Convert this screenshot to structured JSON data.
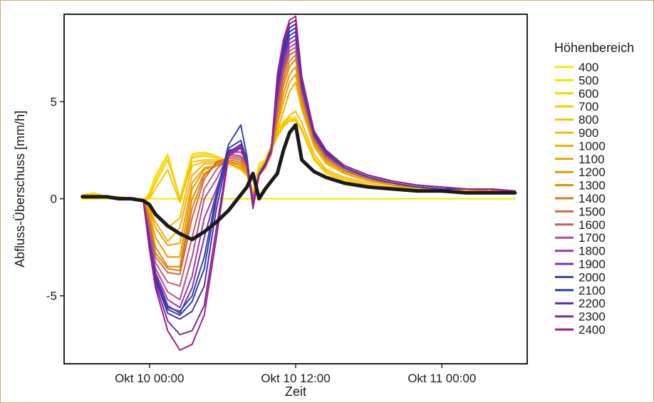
{
  "chart_data": {
    "type": "line",
    "xlabel": "Zeit",
    "ylabel": "Abfluss-Überschuss [mm/h]",
    "x_ticks": [
      "Okt 10 00:00",
      "Okt 10 12:00",
      "Okt 11 00:00"
    ],
    "x_tick_hours": [
      0,
      12,
      24
    ],
    "xlim_hours": [
      -7,
      31
    ],
    "y_ticks": [
      5,
      0,
      -5
    ],
    "y_tick_labels": [
      "5",
      "0",
      "-5"
    ],
    "ylim": [
      -8.5,
      9.5
    ],
    "legend_title": "Höhenbereich",
    "legend_position": "right",
    "x_hours": [
      -5.5,
      -4.5,
      -3.5,
      -2.5,
      -1.5,
      -0.5,
      0,
      0.5,
      1.5,
      2.5,
      3.5,
      4.5,
      5.5,
      6.5,
      7.5,
      8.0,
      8.5,
      9.0,
      9.5,
      10.0,
      10.5,
      11.0,
      11.5,
      12.0,
      12.5,
      13.5,
      14.5,
      16,
      18,
      20,
      22,
      24,
      26,
      28,
      30
    ],
    "series": [
      {
        "name": "400",
        "color": "#f3e600",
        "width": 2,
        "values": [
          0.0,
          0.0,
          0.0,
          0.0,
          0.0,
          0.0,
          0.0,
          0.0,
          0.0,
          0.0,
          0.0,
          0.0,
          0.0,
          0.0,
          0.0,
          0.0,
          0.0,
          0.0,
          0.0,
          0.0,
          0.0,
          0.0,
          0.0,
          0.0,
          0.0,
          0.0,
          0.0,
          0.0,
          0.0,
          0.0,
          0.0,
          0.0,
          0.0,
          0.0,
          0.0
        ]
      },
      {
        "name": "500",
        "color": "#f5e000",
        "width": 2,
        "values": [
          0.2,
          0.3,
          0.1,
          0.1,
          0.0,
          -0.1,
          0.3,
          1.2,
          2.3,
          0.0,
          2.3,
          2.4,
          2.2,
          1.9,
          1.5,
          1.3,
          0.4,
          1.8,
          2.0,
          2.8,
          3.5,
          4.0,
          4.2,
          4.2,
          3.5,
          2.0,
          1.3,
          0.9,
          0.6,
          0.5,
          0.4,
          0.4,
          0.3,
          0.3,
          0.3
        ]
      },
      {
        "name": "600",
        "color": "#f7d600",
        "width": 2,
        "values": [
          0.2,
          0.2,
          0.1,
          0.1,
          0.0,
          -0.1,
          0.2,
          1.0,
          2.2,
          0.0,
          2.2,
          2.3,
          2.2,
          1.9,
          1.5,
          1.2,
          0.3,
          1.6,
          2.0,
          2.7,
          3.4,
          3.9,
          4.1,
          4.1,
          3.5,
          2.0,
          1.3,
          0.9,
          0.6,
          0.5,
          0.4,
          0.4,
          0.3,
          0.3,
          0.3
        ]
      },
      {
        "name": "700",
        "color": "#f8cc00",
        "width": 2,
        "values": [
          0.2,
          0.2,
          0.1,
          0.1,
          0.0,
          -0.1,
          0.1,
          0.8,
          2.0,
          0.0,
          2.1,
          2.2,
          2.1,
          1.8,
          1.5,
          1.2,
          0.3,
          1.5,
          1.9,
          2.6,
          3.3,
          3.8,
          4.0,
          4.0,
          3.5,
          2.0,
          1.4,
          1.0,
          0.7,
          0.5,
          0.4,
          0.4,
          0.3,
          0.3,
          0.3
        ]
      },
      {
        "name": "800",
        "color": "#f8c300",
        "width": 2,
        "values": [
          0.2,
          0.2,
          0.1,
          0.1,
          0.0,
          -0.1,
          0.0,
          0.5,
          1.5,
          -0.2,
          1.9,
          2.0,
          2.0,
          1.8,
          1.5,
          1.2,
          0.2,
          1.4,
          1.9,
          2.6,
          3.2,
          3.7,
          4.0,
          4.1,
          3.6,
          2.1,
          1.4,
          1.0,
          0.7,
          0.5,
          0.4,
          0.4,
          0.4,
          0.3,
          0.3
        ]
      },
      {
        "name": "900",
        "color": "#f6b900",
        "width": 2,
        "values": [
          0.2,
          0.2,
          0.1,
          0.1,
          0.0,
          -0.1,
          -0.3,
          -0.8,
          -1.5,
          -1.0,
          1.7,
          1.9,
          1.9,
          1.8,
          1.6,
          1.3,
          0.1,
          1.3,
          1.8,
          2.5,
          3.2,
          3.8,
          4.3,
          4.5,
          3.9,
          2.3,
          1.5,
          1.1,
          0.8,
          0.6,
          0.5,
          0.4,
          0.4,
          0.4,
          0.4
        ]
      },
      {
        "name": "1000",
        "color": "#f3ae00",
        "width": 2,
        "values": [
          0.1,
          0.1,
          0.1,
          0.0,
          0.0,
          -0.1,
          -0.5,
          -1.2,
          -2.2,
          -1.5,
          1.2,
          1.8,
          1.8,
          1.8,
          1.6,
          1.3,
          0.0,
          1.2,
          1.7,
          2.4,
          3.5,
          4.5,
          5.5,
          6.0,
          4.6,
          2.7,
          1.8,
          1.3,
          0.9,
          0.7,
          0.5,
          0.5,
          0.4,
          0.4,
          0.4
        ]
      },
      {
        "name": "1100",
        "color": "#efa200",
        "width": 2,
        "values": [
          0.1,
          0.1,
          0.1,
          0.0,
          0.0,
          -0.1,
          -0.6,
          -1.5,
          -2.4,
          -2.3,
          0.8,
          1.6,
          1.7,
          1.8,
          1.6,
          1.3,
          0.0,
          1.2,
          1.6,
          2.3,
          3.8,
          5.0,
          6.0,
          6.4,
          4.8,
          2.8,
          1.9,
          1.3,
          0.9,
          0.7,
          0.5,
          0.5,
          0.4,
          0.4,
          0.4
        ]
      },
      {
        "name": "1200",
        "color": "#ea9600",
        "width": 2,
        "values": [
          0.1,
          0.1,
          0.1,
          0.0,
          0.0,
          -0.1,
          -0.8,
          -2.0,
          -3.0,
          -3.0,
          0.5,
          1.5,
          1.7,
          1.9,
          1.7,
          1.4,
          0.0,
          1.2,
          1.6,
          2.3,
          4.0,
          5.4,
          6.4,
          6.8,
          5.0,
          2.9,
          2.0,
          1.4,
          1.0,
          0.7,
          0.6,
          0.5,
          0.5,
          0.4,
          0.4
        ]
      },
      {
        "name": "1300",
        "color": "#e48b00",
        "width": 2,
        "values": [
          0.1,
          0.1,
          0.1,
          0.0,
          0.0,
          -0.1,
          -1.0,
          -2.5,
          -3.5,
          -3.5,
          0.0,
          1.3,
          1.7,
          1.9,
          1.8,
          1.5,
          0.0,
          1.2,
          1.6,
          2.3,
          4.2,
          5.8,
          6.8,
          7.2,
          5.2,
          3.0,
          2.0,
          1.4,
          1.0,
          0.7,
          0.6,
          0.5,
          0.5,
          0.4,
          0.4
        ]
      },
      {
        "name": "1400",
        "color": "#db7d18",
        "width": 2,
        "values": [
          0.1,
          0.1,
          0.1,
          0.0,
          0.0,
          -0.1,
          -1.2,
          -2.8,
          -3.6,
          -3.7,
          -0.5,
          1.2,
          1.8,
          2.0,
          1.9,
          1.6,
          0.0,
          1.2,
          1.6,
          2.3,
          4.4,
          6.1,
          7.1,
          7.4,
          5.3,
          3.0,
          2.1,
          1.5,
          1.0,
          0.8,
          0.6,
          0.5,
          0.5,
          0.4,
          0.4
        ]
      },
      {
        "name": "1500",
        "color": "#cf6a3a",
        "width": 2,
        "values": [
          0.1,
          0.1,
          0.1,
          0.0,
          0.0,
          -0.1,
          -1.3,
          -3.0,
          -3.8,
          -3.9,
          -1.0,
          1.0,
          1.9,
          2.1,
          2.0,
          1.7,
          0.0,
          1.2,
          1.6,
          2.3,
          4.6,
          6.4,
          7.4,
          7.6,
          5.4,
          3.1,
          2.1,
          1.5,
          1.0,
          0.8,
          0.6,
          0.5,
          0.5,
          0.4,
          0.4
        ]
      },
      {
        "name": "1600",
        "color": "#c15c70",
        "width": 2,
        "values": [
          0.1,
          0.1,
          0.1,
          0.0,
          0.0,
          -0.1,
          -1.5,
          -3.3,
          -4.3,
          -4.5,
          -2.0,
          0.5,
          1.5,
          2.2,
          2.1,
          1.8,
          0.0,
          1.3,
          1.7,
          2.4,
          4.8,
          6.6,
          7.6,
          7.8,
          5.5,
          3.1,
          2.2,
          1.5,
          1.1,
          0.8,
          0.6,
          0.5,
          0.5,
          0.5,
          0.4
        ]
      },
      {
        "name": "1700",
        "color": "#b04c92",
        "width": 2,
        "values": [
          0.1,
          0.1,
          0.1,
          0.0,
          0.0,
          -0.1,
          -1.8,
          -3.6,
          -4.8,
          -5.2,
          -3.0,
          0.0,
          1.0,
          2.3,
          2.2,
          1.9,
          -0.1,
          1.3,
          1.7,
          2.4,
          5.0,
          6.8,
          7.8,
          8.0,
          5.6,
          3.2,
          2.2,
          1.6,
          1.1,
          0.8,
          0.6,
          0.5,
          0.5,
          0.5,
          0.4
        ]
      },
      {
        "name": "1800",
        "color": "#9a3ca8",
        "width": 2,
        "values": [
          0.1,
          0.1,
          0.1,
          0.0,
          0.0,
          -0.1,
          -2.0,
          -3.8,
          -5.2,
          -5.6,
          -4.0,
          -1.0,
          0.5,
          2.4,
          2.4,
          2.0,
          -0.2,
          1.3,
          1.8,
          2.5,
          5.2,
          7.0,
          8.0,
          8.2,
          5.7,
          3.2,
          2.3,
          1.6,
          1.1,
          0.8,
          0.6,
          0.5,
          0.5,
          0.5,
          0.4
        ]
      },
      {
        "name": "1900",
        "color": "#7b33b0",
        "width": 2,
        "values": [
          0.1,
          0.1,
          0.1,
          0.0,
          0.0,
          -0.1,
          -2.1,
          -3.9,
          -5.5,
          -5.9,
          -4.6,
          -2.0,
          0.3,
          2.5,
          2.6,
          2.1,
          -0.3,
          1.3,
          1.8,
          2.5,
          5.4,
          7.2,
          8.2,
          8.4,
          5.8,
          3.3,
          2.3,
          1.6,
          1.1,
          0.8,
          0.6,
          0.5,
          0.5,
          0.5,
          0.4
        ]
      },
      {
        "name": "2000",
        "color": "#3742a6",
        "width": 2,
        "values": [
          0.1,
          0.1,
          0.1,
          0.0,
          0.0,
          -0.1,
          -2.2,
          -4.0,
          -5.6,
          -5.8,
          -5.0,
          -3.0,
          0.2,
          2.8,
          3.8,
          2.2,
          -0.5,
          1.3,
          1.8,
          2.6,
          5.7,
          7.4,
          8.4,
          8.6,
          5.9,
          3.3,
          2.3,
          1.6,
          1.1,
          0.8,
          0.6,
          0.5,
          0.5,
          0.5,
          0.4
        ]
      },
      {
        "name": "2100",
        "color": "#2a3fb0",
        "width": 2,
        "values": [
          0.1,
          0.1,
          0.1,
          0.0,
          0.0,
          -0.1,
          -2.3,
          -4.1,
          -5.7,
          -6.0,
          -5.3,
          -3.6,
          0.0,
          2.6,
          3.0,
          2.0,
          -0.4,
          1.2,
          1.7,
          2.5,
          5.8,
          7.6,
          8.6,
          8.8,
          6.0,
          3.4,
          2.4,
          1.7,
          1.2,
          0.9,
          0.7,
          0.6,
          0.5,
          0.5,
          0.4
        ]
      },
      {
        "name": "2200",
        "color": "#4e2fa6",
        "width": 2,
        "values": [
          0.1,
          0.1,
          0.1,
          0.0,
          0.0,
          -0.1,
          -2.4,
          -4.2,
          -5.9,
          -6.2,
          -5.8,
          -4.5,
          -0.5,
          2.4,
          2.8,
          1.9,
          -0.4,
          1.2,
          1.7,
          2.5,
          6.0,
          7.8,
          8.8,
          9.0,
          6.1,
          3.4,
          2.4,
          1.7,
          1.2,
          0.9,
          0.7,
          0.6,
          0.5,
          0.5,
          0.4
        ]
      },
      {
        "name": "2300",
        "color": "#7c2a99",
        "width": 2,
        "values": [
          0.1,
          0.1,
          0.1,
          0.0,
          0.0,
          -0.1,
          -2.5,
          -4.4,
          -6.3,
          -7.0,
          -6.8,
          -5.5,
          -1.5,
          2.3,
          2.7,
          1.8,
          -0.4,
          1.2,
          1.7,
          2.5,
          6.2,
          8.0,
          9.0,
          9.2,
          6.2,
          3.5,
          2.5,
          1.7,
          1.2,
          0.9,
          0.7,
          0.6,
          0.5,
          0.5,
          0.4
        ]
      },
      {
        "name": "2400",
        "color": "#9e1f8a",
        "width": 2,
        "values": [
          0.1,
          0.1,
          0.1,
          0.0,
          0.0,
          -0.1,
          -2.6,
          -4.6,
          -6.8,
          -7.8,
          -7.5,
          -6.0,
          -2.0,
          2.2,
          2.6,
          1.7,
          -0.4,
          1.2,
          1.7,
          2.5,
          6.4,
          8.2,
          9.2,
          9.4,
          6.3,
          3.5,
          2.5,
          1.7,
          1.2,
          0.9,
          0.7,
          0.6,
          0.5,
          0.5,
          0.4
        ]
      },
      {
        "name": "",
        "color": "#1a1a1a",
        "width": 5,
        "values": [
          0.1,
          0.1,
          0.1,
          0.0,
          0.0,
          -0.1,
          -0.3,
          -0.8,
          -1.4,
          -1.8,
          -2.1,
          -1.7,
          -1.2,
          -0.6,
          0.2,
          0.6,
          1.3,
          0.0,
          0.5,
          0.9,
          1.3,
          2.5,
          3.4,
          3.8,
          2.0,
          1.4,
          1.1,
          0.8,
          0.6,
          0.5,
          0.4,
          0.4,
          0.3,
          0.3,
          0.3
        ]
      }
    ]
  }
}
